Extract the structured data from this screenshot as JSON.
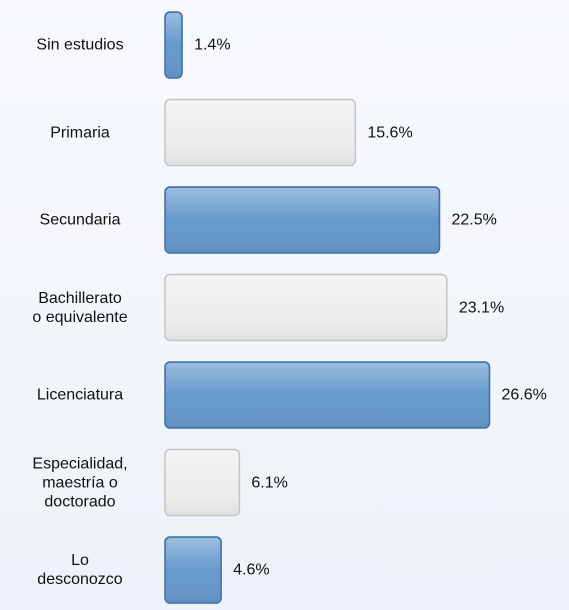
{
  "chart_data": {
    "type": "barh",
    "categories": [
      "Sin estudios",
      "Primaria",
      "Secundaria",
      "Bachillerato\no equivalente",
      "Licenciatura",
      "Especialidad,\nmaestría o\ndoctorado",
      "Lo\ndesconozco"
    ],
    "values": [
      1.4,
      15.6,
      22.5,
      23.1,
      26.6,
      6.1,
      4.6
    ],
    "value_labels": [
      "1.4%",
      "15.6%",
      "22.5%",
      "23.1%",
      "26.6%",
      "6.1%",
      "4.6%"
    ],
    "colors": [
      "#6699cc",
      "#eeeeee",
      "#6699cc",
      "#eeeeee",
      "#6699cc",
      "#eeeeee",
      "#6699cc"
    ]
  }
}
